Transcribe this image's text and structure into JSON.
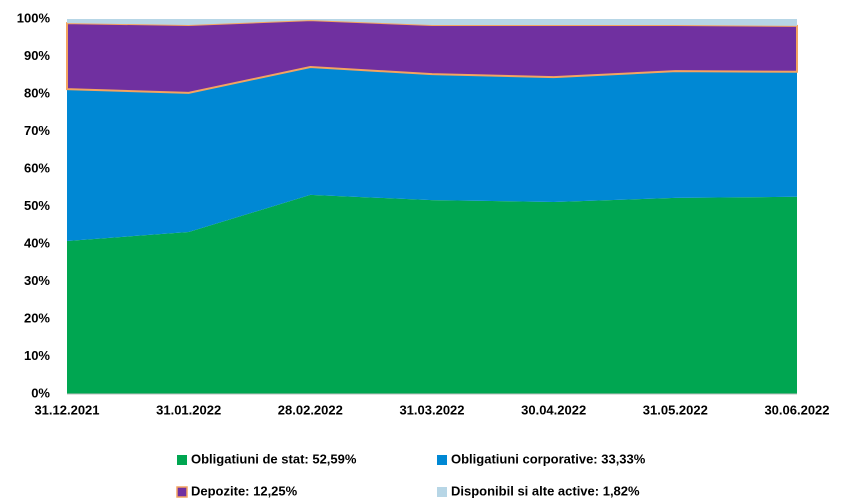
{
  "chart_data": {
    "type": "stacked_area",
    "categories": [
      "31.12.2021",
      "31.01.2022",
      "28.02.2022",
      "31.03.2022",
      "30.04.2022",
      "31.05.2022",
      "30.06.2022"
    ],
    "series": [
      {
        "name": "Obligatiuni de stat: 52,59%",
        "color": "#00a651",
        "values": [
          40.8,
          43.2,
          53.1,
          51.7,
          51.2,
          52.3,
          52.59
        ]
      },
      {
        "name": "Obligatiuni corporative: 33,33%",
        "color": "#0088d4",
        "values": [
          40.5,
          37.1,
          34.1,
          33.6,
          33.3,
          33.8,
          33.33
        ]
      },
      {
        "name": "Depozite: 12,25%",
        "color": "#7030a0",
        "stroke": "#f4a460",
        "values": [
          17.6,
          18.1,
          12.5,
          13.1,
          13.9,
          12.3,
          12.25
        ]
      },
      {
        "name": "Disponibil si alte active: 1,82%",
        "color": "#b7d6e6",
        "values": [
          1.1,
          1.6,
          0.3,
          1.6,
          1.6,
          1.6,
          1.82
        ]
      }
    ],
    "ylim": [
      0,
      100
    ],
    "yticks": [
      {
        "value": 0,
        "label": "0%"
      },
      {
        "value": 10,
        "label": "10%"
      },
      {
        "value": 20,
        "label": "20%"
      },
      {
        "value": 30,
        "label": "30%"
      },
      {
        "value": 40,
        "label": "40%"
      },
      {
        "value": 50,
        "label": "50%"
      },
      {
        "value": 60,
        "label": "60%"
      },
      {
        "value": 70,
        "label": "70%"
      },
      {
        "value": 80,
        "label": "80%"
      },
      {
        "value": 90,
        "label": "90%"
      },
      {
        "value": 100,
        "label": "100%"
      }
    ],
    "grid": false
  }
}
